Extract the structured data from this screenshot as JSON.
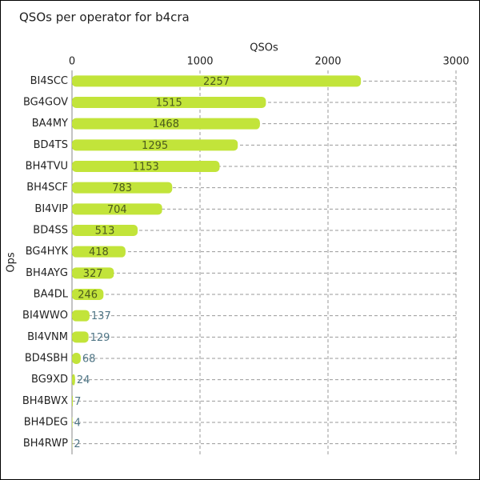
{
  "chart_data": {
    "type": "barh",
    "title": "QSOs per operator for b4cra",
    "x_label": "QSOs",
    "y_label": "Ops",
    "categories": [
      "BI4SCC",
      "BG4GOV",
      "BA4MY",
      "BD4TS",
      "BH4TVU",
      "BH4SCF",
      "BI4VIP",
      "BD4SS",
      "BG4HYK",
      "BH4AYG",
      "BA4DL",
      "BI4WWO",
      "BI4VNM",
      "BD4SBH",
      "BG9XD",
      "BH4BWX",
      "BH4DEG",
      "BH4RWP"
    ],
    "values": [
      2257,
      1515,
      1468,
      1295,
      1153,
      783,
      704,
      513,
      418,
      327,
      246,
      137,
      129,
      68,
      24,
      7,
      4,
      2
    ],
    "color": "#c2e43a",
    "xlim": [
      0,
      3000
    ],
    "xticks": [
      0,
      1000,
      2000,
      3000
    ],
    "grid": true
  }
}
